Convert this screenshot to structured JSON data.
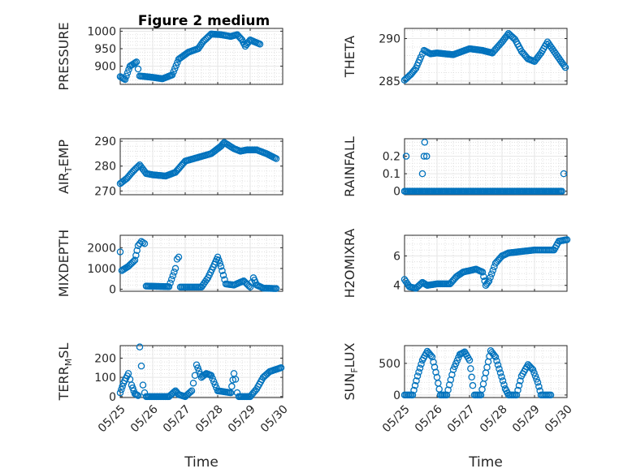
{
  "figure": {
    "title": "Figure 2 medium",
    "marker_color": "#0072BD",
    "axis_color": "#262626",
    "grid": true,
    "minor_grid": true
  },
  "chart_data": [
    {
      "type": "scatter",
      "name": "pressure",
      "ylabel": "PRESSURE",
      "xlabel": "",
      "x_ticks": [
        "05/25",
        "05/26",
        "05/27",
        "05/28",
        "05/29",
        "05/30"
      ],
      "xlim": [
        0,
        5
      ],
      "ylim": [
        848,
        1008
      ],
      "y_ticks": [
        900,
        950,
        1000
      ],
      "keypoints": [
        [
          0,
          870
        ],
        [
          0.15,
          862
        ],
        [
          0.3,
          900
        ],
        [
          0.5,
          912
        ],
        [
          0.6,
          872
        ],
        [
          1.0,
          868
        ],
        [
          1.3,
          864
        ],
        [
          1.6,
          875
        ],
        [
          1.8,
          920
        ],
        [
          2.1,
          940
        ],
        [
          2.4,
          950
        ],
        [
          2.55,
          970
        ],
        [
          2.8,
          992
        ],
        [
          3.1,
          990
        ],
        [
          3.4,
          985
        ],
        [
          3.6,
          990
        ],
        [
          3.75,
          975
        ],
        [
          3.85,
          957
        ],
        [
          4.0,
          975
        ],
        [
          4.3,
          963
        ]
      ]
    },
    {
      "type": "scatter",
      "name": "theta",
      "ylabel": "THETA",
      "xlabel": "",
      "x_ticks": [
        "05/25",
        "05/26",
        "05/27",
        "05/28",
        "05/29",
        "05/30"
      ],
      "xlim": [
        0,
        5
      ],
      "ylim": [
        284.6,
        291.2
      ],
      "y_ticks": [
        285,
        290
      ],
      "keypoints": [
        [
          0,
          285.1
        ],
        [
          0.2,
          285.8
        ],
        [
          0.35,
          286.5
        ],
        [
          0.5,
          287.8
        ],
        [
          0.6,
          288.6
        ],
        [
          0.8,
          288.2
        ],
        [
          1.0,
          288.3
        ],
        [
          1.5,
          288.1
        ],
        [
          2.0,
          288.8
        ],
        [
          2.4,
          288.6
        ],
        [
          2.7,
          288.3
        ],
        [
          3.0,
          289.6
        ],
        [
          3.2,
          290.6
        ],
        [
          3.4,
          289.9
        ],
        [
          3.6,
          288.5
        ],
        [
          3.8,
          287.6
        ],
        [
          4.0,
          287.3
        ],
        [
          4.2,
          288.3
        ],
        [
          4.4,
          289.6
        ],
        [
          4.6,
          288.5
        ],
        [
          4.8,
          287.4
        ],
        [
          4.95,
          286.6
        ]
      ]
    },
    {
      "type": "scatter",
      "name": "air_temp",
      "ylabel_main": "AIR",
      "ylabel_sub": "T",
      "ylabel_tail": "EMP",
      "xlabel": "",
      "x_ticks": [
        "05/25",
        "05/26",
        "05/27",
        "05/28",
        "05/29",
        "05/30"
      ],
      "xlim": [
        0,
        5
      ],
      "ylim": [
        268.5,
        291
      ],
      "y_ticks": [
        270,
        280,
        290
      ],
      "keypoints": [
        [
          0,
          273
        ],
        [
          0.2,
          275
        ],
        [
          0.4,
          278
        ],
        [
          0.6,
          280.5
        ],
        [
          0.8,
          277
        ],
        [
          1.0,
          276.5
        ],
        [
          1.4,
          276
        ],
        [
          1.7,
          277.5
        ],
        [
          2.0,
          282
        ],
        [
          2.4,
          283.5
        ],
        [
          2.8,
          285
        ],
        [
          3.1,
          288
        ],
        [
          3.2,
          289.5
        ],
        [
          3.5,
          287
        ],
        [
          3.7,
          286
        ],
        [
          3.9,
          286.5
        ],
        [
          4.2,
          286.5
        ],
        [
          4.5,
          285
        ],
        [
          4.8,
          283
        ]
      ]
    },
    {
      "type": "scatter",
      "name": "rainfall",
      "ylabel": "RAINFALL",
      "xlabel": "",
      "x_ticks": [
        "05/25",
        "05/26",
        "05/27",
        "05/28",
        "05/29",
        "05/30"
      ],
      "xlim": [
        0,
        5
      ],
      "ylim": [
        -0.02,
        0.3
      ],
      "y_ticks": [
        0,
        0.1,
        0.2
      ],
      "y_tick_labels": [
        "0",
        "0.1",
        "0.2"
      ],
      "baseline": {
        "from": 0,
        "to": 4.85,
        "step": 0.04,
        "value": 0
      },
      "points": [
        [
          0.05,
          0.2
        ],
        [
          0.55,
          0.1
        ],
        [
          0.6,
          0.2
        ],
        [
          0.62,
          0.28
        ],
        [
          0.68,
          0.2
        ],
        [
          4.9,
          0.1
        ]
      ]
    },
    {
      "type": "scatter",
      "name": "mixdepth",
      "ylabel": "MIXDEPTH",
      "xlabel": "",
      "x_ticks": [
        "05/25",
        "05/26",
        "05/27",
        "05/28",
        "05/29",
        "05/30"
      ],
      "xlim": [
        0,
        5
      ],
      "ylim": [
        -100,
        2600
      ],
      "y_ticks": [
        0,
        1000,
        2000
      ],
      "keypoints": [
        [
          0,
          1800
        ],
        [
          0.05,
          900
        ],
        [
          0.25,
          1100
        ],
        [
          0.45,
          1400
        ],
        [
          0.55,
          2100
        ],
        [
          0.65,
          2300
        ],
        [
          0.75,
          2200
        ],
        [
          0.8,
          150
        ],
        [
          1.5,
          120
        ],
        [
          1.7,
          1000
        ],
        [
          1.75,
          1450
        ],
        [
          1.8,
          1550
        ],
        [
          1.85,
          100
        ],
        [
          2.5,
          100
        ],
        [
          2.7,
          550
        ],
        [
          2.9,
          1200
        ],
        [
          3.0,
          1550
        ],
        [
          3.1,
          1100
        ],
        [
          3.25,
          250
        ],
        [
          3.5,
          200
        ],
        [
          3.8,
          400
        ],
        [
          4.0,
          100
        ],
        [
          4.1,
          550
        ],
        [
          4.2,
          200
        ],
        [
          4.4,
          50
        ],
        [
          4.8,
          30
        ]
      ]
    },
    {
      "type": "scatter",
      "name": "h2omixra",
      "ylabel": "H2OMIXRA",
      "xlabel": "",
      "x_ticks": [
        "05/25",
        "05/26",
        "05/27",
        "05/28",
        "05/29",
        "05/30"
      ],
      "xlim": [
        0,
        5
      ],
      "ylim": [
        3.6,
        7.4
      ],
      "y_ticks": [
        4,
        6
      ],
      "keypoints": [
        [
          0,
          4.4
        ],
        [
          0.15,
          3.9
        ],
        [
          0.35,
          3.8
        ],
        [
          0.55,
          4.2
        ],
        [
          0.7,
          4.0
        ],
        [
          1.0,
          4.1
        ],
        [
          1.4,
          4.1
        ],
        [
          1.6,
          4.6
        ],
        [
          1.8,
          4.9
        ],
        [
          2.0,
          5.0
        ],
        [
          2.2,
          5.1
        ],
        [
          2.4,
          4.9
        ],
        [
          2.5,
          4.0
        ],
        [
          2.6,
          4.3
        ],
        [
          2.8,
          5.5
        ],
        [
          3.0,
          6.0
        ],
        [
          3.2,
          6.2
        ],
        [
          3.6,
          6.3
        ],
        [
          4.0,
          6.4
        ],
        [
          4.3,
          6.4
        ],
        [
          4.6,
          6.4
        ],
        [
          4.75,
          7.0
        ],
        [
          5.0,
          7.1
        ]
      ]
    },
    {
      "type": "scatter",
      "name": "terr_msl",
      "ylabel_main": "TERR",
      "ylabel_sub": "M",
      "ylabel_tail": "SL",
      "xlabel": "Time",
      "x_ticks": [
        "05/25",
        "05/26",
        "05/27",
        "05/28",
        "05/29",
        "05/30"
      ],
      "xlim": [
        0,
        5
      ],
      "ylim": [
        -5,
        265
      ],
      "y_ticks": [
        0,
        100,
        200
      ],
      "keypoints": [
        [
          0,
          20
        ],
        [
          0.1,
          70
        ],
        [
          0.25,
          120
        ],
        [
          0.35,
          60
        ],
        [
          0.45,
          15
        ],
        [
          0.55,
          5
        ],
        [
          0.6,
          258
        ],
        [
          0.7,
          60
        ],
        [
          0.75,
          20
        ],
        [
          0.8,
          0
        ],
        [
          1.5,
          0
        ],
        [
          1.7,
          30
        ],
        [
          1.8,
          10
        ],
        [
          2.0,
          0
        ],
        [
          2.2,
          30
        ],
        [
          2.3,
          110
        ],
        [
          2.35,
          165
        ],
        [
          2.5,
          100
        ],
        [
          2.65,
          120
        ],
        [
          2.8,
          110
        ],
        [
          3.0,
          30
        ],
        [
          3.4,
          20
        ],
        [
          3.5,
          120
        ],
        [
          3.55,
          90
        ],
        [
          3.6,
          20
        ],
        [
          3.65,
          0
        ],
        [
          4.0,
          0
        ],
        [
          4.2,
          40
        ],
        [
          4.4,
          100
        ],
        [
          4.6,
          130
        ],
        [
          4.95,
          150
        ]
      ]
    },
    {
      "type": "scatter",
      "name": "sun_flux",
      "ylabel_main": "SUN",
      "ylabel_sub": "F",
      "ylabel_tail": "LUX",
      "xlabel": "Time",
      "x_ticks": [
        "05/25",
        "05/26",
        "05/27",
        "05/28",
        "05/29",
        "05/30"
      ],
      "xlim": [
        0,
        5
      ],
      "ylim": [
        -40,
        780
      ],
      "y_ticks": [
        0,
        500
      ],
      "keypoints": [
        [
          0,
          0
        ],
        [
          0.25,
          0
        ],
        [
          0.4,
          300
        ],
        [
          0.55,
          550
        ],
        [
          0.7,
          690
        ],
        [
          0.85,
          600
        ],
        [
          1.0,
          280
        ],
        [
          1.1,
          0
        ],
        [
          1.3,
          0
        ],
        [
          1.5,
          400
        ],
        [
          1.7,
          640
        ],
        [
          1.85,
          680
        ],
        [
          2.0,
          550
        ],
        [
          2.1,
          150
        ],
        [
          2.15,
          0
        ],
        [
          2.35,
          0
        ],
        [
          2.5,
          350
        ],
        [
          2.65,
          700
        ],
        [
          2.8,
          600
        ],
        [
          2.95,
          350
        ],
        [
          3.1,
          100
        ],
        [
          3.2,
          0
        ],
        [
          3.45,
          0
        ],
        [
          3.6,
          300
        ],
        [
          3.8,
          480
        ],
        [
          3.95,
          400
        ],
        [
          4.1,
          200
        ],
        [
          4.2,
          0
        ],
        [
          4.5,
          0
        ]
      ]
    }
  ]
}
